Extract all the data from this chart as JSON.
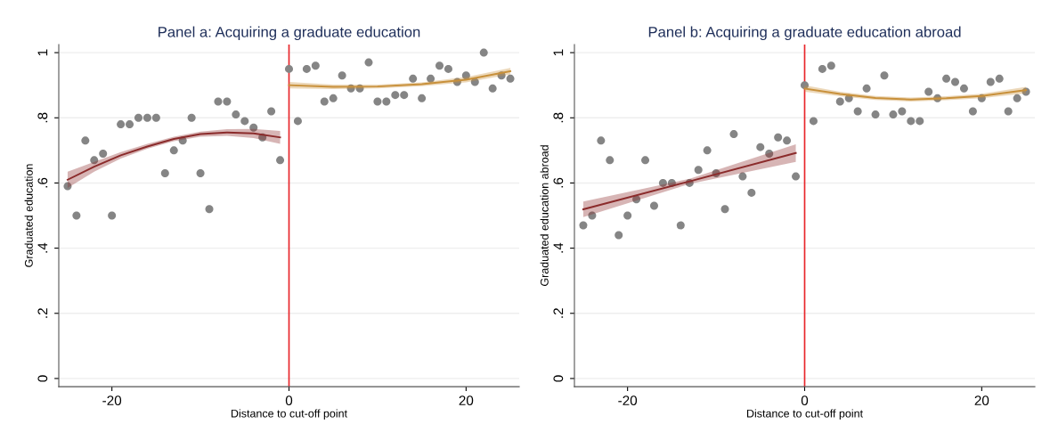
{
  "chart_data": [
    {
      "type": "scatter",
      "title": "Panel a: Acquiring a graduate education",
      "xlabel": "Distance to cut-off point",
      "ylabel": "Graduated education",
      "xlim": [
        -26,
        26
      ],
      "xticks": [
        -20,
        0,
        20
      ],
      "ylim": [
        -0.025,
        1.025
      ],
      "yticks": [
        {
          "value": 0,
          "label": "0"
        },
        {
          "value": 0.2,
          "label": ".2"
        },
        {
          "value": 0.4,
          "label": ".4"
        },
        {
          "value": 0.6,
          "label": ".6"
        },
        {
          "value": 0.8,
          "label": ".8"
        },
        {
          "value": 1,
          "label": "1"
        }
      ],
      "grid": "y",
      "marker": "circle",
      "ref_lines": [
        {
          "axis": "x",
          "value": 0,
          "color": "#e8262b"
        }
      ],
      "series": [
        {
          "color": "#858585",
          "x": [
            -25,
            -24,
            -23,
            -22,
            -21,
            -20,
            -19,
            -18,
            -17,
            -16,
            -15,
            -14,
            -13,
            -12,
            -11,
            -10,
            -9,
            -8,
            -7,
            -6,
            -5,
            -4,
            -3,
            -2,
            -1,
            0,
            1,
            2,
            3,
            4,
            5,
            6,
            7,
            8,
            9,
            10,
            11,
            12,
            13,
            14,
            15,
            16,
            17,
            18,
            19,
            20,
            21,
            22,
            23,
            24,
            25
          ],
          "values": [
            0.59,
            0.5,
            0.73,
            0.67,
            0.69,
            0.5,
            0.78,
            0.78,
            0.8,
            0.8,
            0.8,
            0.63,
            0.7,
            0.73,
            0.8,
            0.63,
            0.52,
            0.85,
            0.85,
            0.81,
            0.79,
            0.77,
            0.74,
            0.82,
            0.67,
            0.95,
            0.79,
            0.95,
            0.96,
            0.85,
            0.86,
            0.93,
            0.89,
            0.89,
            0.97,
            0.85,
            0.85,
            0.87,
            0.87,
            0.92,
            0.86,
            0.92,
            0.96,
            0.95,
            0.91,
            0.93,
            0.91,
            1.0,
            0.89,
            0.93,
            0.92
          ]
        },
        {
          "type": "line",
          "marker": "none",
          "color": "#8b2b2b",
          "x": [
            -25,
            -22,
            -19,
            -16,
            -13,
            -10,
            -7,
            -4,
            -1
          ],
          "values": [
            0.61,
            0.65,
            0.685,
            0.712,
            0.735,
            0.75,
            0.755,
            0.752,
            0.74
          ],
          "lower": [
            0.585,
            0.635,
            0.675,
            0.705,
            0.728,
            0.742,
            0.745,
            0.738,
            0.72
          ],
          "upper": [
            0.635,
            0.665,
            0.695,
            0.72,
            0.742,
            0.758,
            0.765,
            0.766,
            0.76
          ]
        },
        {
          "type": "line",
          "marker": "none",
          "color": "#c8903a",
          "x": [
            0,
            5,
            10,
            15,
            20,
            25
          ],
          "values": [
            0.9,
            0.895,
            0.896,
            0.903,
            0.917,
            0.943
          ],
          "lower": [
            0.89,
            0.888,
            0.89,
            0.897,
            0.909,
            0.933
          ],
          "upper": [
            0.91,
            0.902,
            0.902,
            0.909,
            0.925,
            0.953
          ]
        }
      ]
    },
    {
      "type": "scatter",
      "title": "Panel b: Acquiring a graduate education abroad",
      "xlabel": "Distance to cut-off point",
      "ylabel": "Graduated education abroad",
      "xlim": [
        -26,
        26
      ],
      "xticks": [
        -20,
        0,
        20
      ],
      "ylim": [
        -0.025,
        1.025
      ],
      "yticks": [
        {
          "value": 0,
          "label": "0"
        },
        {
          "value": 0.2,
          "label": ".2"
        },
        {
          "value": 0.4,
          "label": ".4"
        },
        {
          "value": 0.6,
          "label": ".6"
        },
        {
          "value": 0.8,
          "label": ".8"
        },
        {
          "value": 1,
          "label": "1"
        }
      ],
      "grid": "y",
      "marker": "circle",
      "ref_lines": [
        {
          "axis": "x",
          "value": 0,
          "color": "#e8262b"
        }
      ],
      "series": [
        {
          "color": "#858585",
          "x": [
            -25,
            -24,
            -23,
            -22,
            -21,
            -20,
            -19,
            -18,
            -17,
            -16,
            -15,
            -14,
            -13,
            -12,
            -11,
            -10,
            -9,
            -8,
            -7,
            -6,
            -5,
            -4,
            -3,
            -2,
            -1,
            0,
            1,
            2,
            3,
            4,
            5,
            6,
            7,
            8,
            9,
            10,
            11,
            12,
            13,
            14,
            15,
            16,
            17,
            18,
            19,
            20,
            21,
            22,
            23,
            24,
            25
          ],
          "values": [
            0.47,
            0.5,
            0.73,
            0.67,
            0.44,
            0.5,
            0.55,
            0.67,
            0.53,
            0.6,
            0.6,
            0.47,
            0.6,
            0.64,
            0.7,
            0.63,
            0.52,
            0.75,
            0.62,
            0.57,
            0.71,
            0.69,
            0.74,
            0.73,
            0.62,
            0.9,
            0.79,
            0.95,
            0.96,
            0.85,
            0.86,
            0.82,
            0.89,
            0.81,
            0.93,
            0.81,
            0.82,
            0.79,
            0.79,
            0.88,
            0.86,
            0.92,
            0.91,
            0.89,
            0.82,
            0.86,
            0.91,
            0.92,
            0.82,
            0.86,
            0.88
          ]
        },
        {
          "type": "line",
          "marker": "none",
          "color": "#8b2b2b",
          "x": [
            -25,
            -13,
            -1
          ],
          "values": [
            0.519,
            0.605,
            0.692
          ],
          "lower": [
            0.495,
            0.597,
            0.665
          ],
          "upper": [
            0.543,
            0.613,
            0.719
          ]
        },
        {
          "type": "line",
          "marker": "none",
          "color": "#c8903a",
          "x": [
            0,
            4,
            8,
            12,
            16,
            20,
            25
          ],
          "values": [
            0.89,
            0.873,
            0.861,
            0.856,
            0.86,
            0.867,
            0.885
          ],
          "lower": [
            0.88,
            0.866,
            0.855,
            0.85,
            0.854,
            0.86,
            0.875
          ],
          "upper": [
            0.9,
            0.88,
            0.867,
            0.862,
            0.866,
            0.874,
            0.895
          ]
        }
      ]
    }
  ]
}
